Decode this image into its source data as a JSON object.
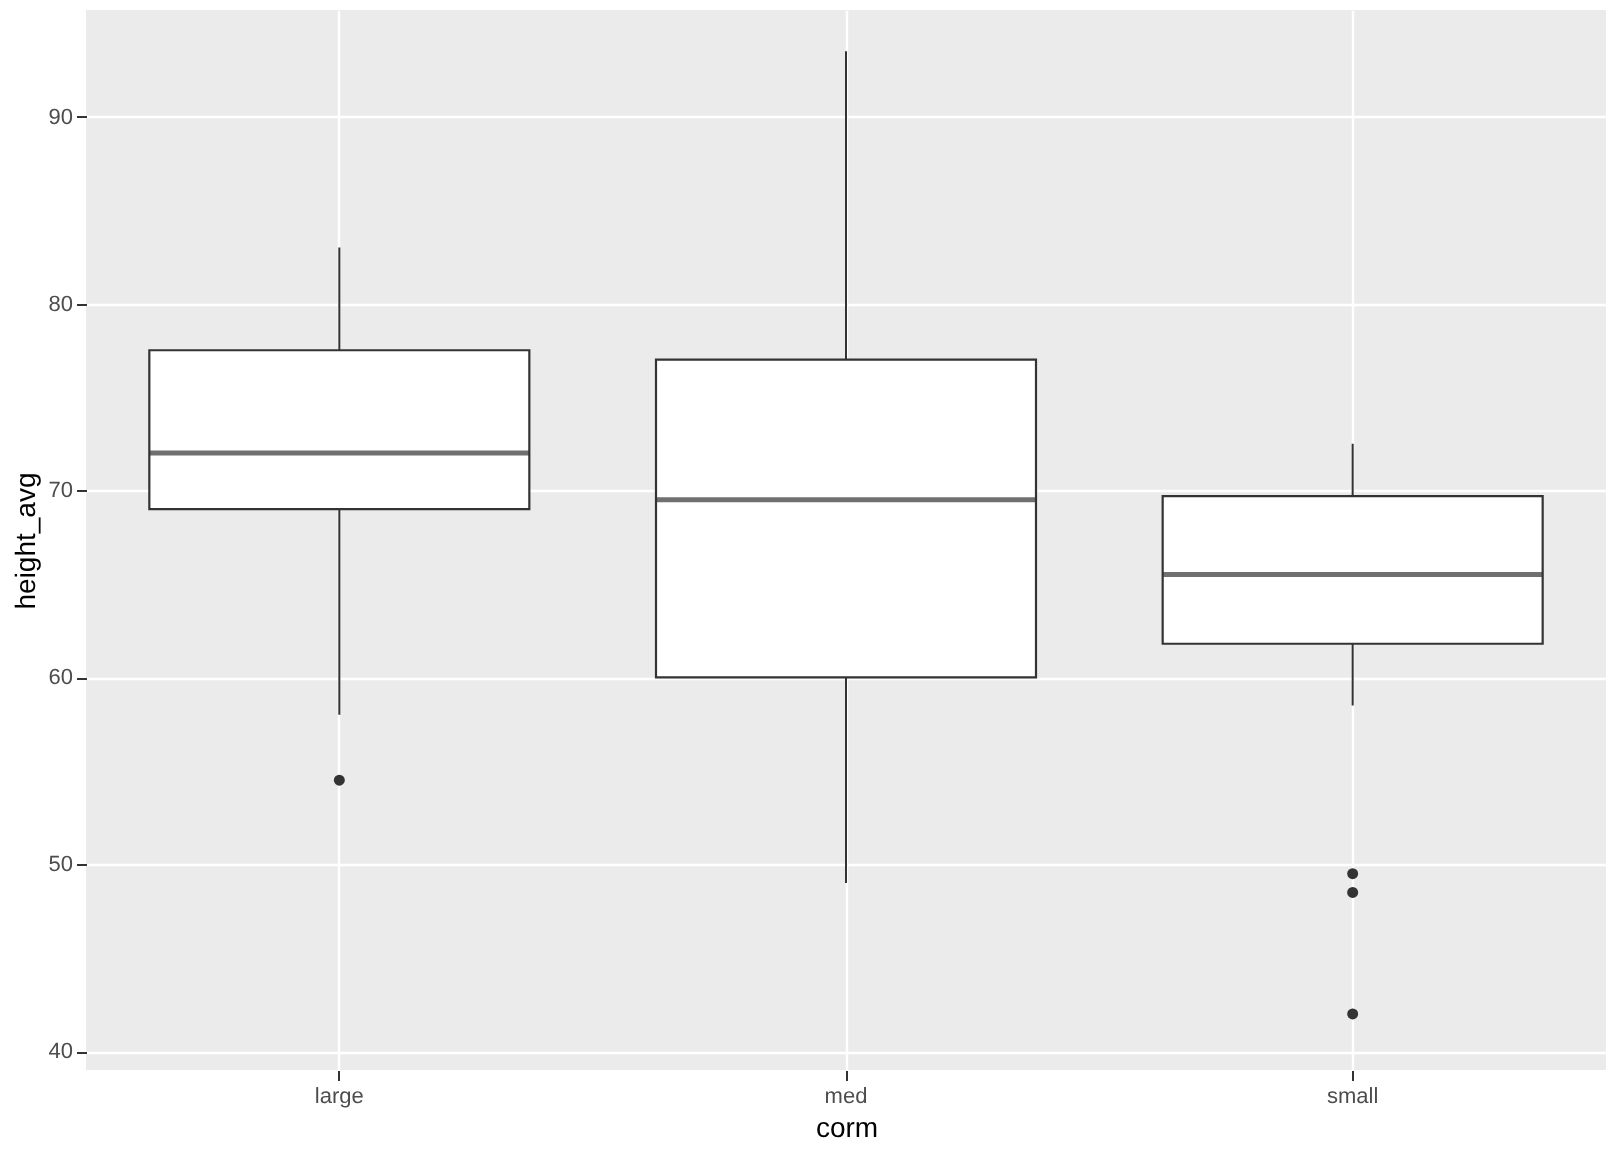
{
  "chart_data": {
    "type": "box",
    "xlabel": "corm",
    "ylabel": "height_avg",
    "categories": [
      "large",
      "med",
      "small"
    ],
    "boxes": [
      {
        "low": 58,
        "q1": 69,
        "median": 72,
        "q3": 77.5,
        "high": 83,
        "outliers": [
          54.5
        ]
      },
      {
        "low": 49,
        "q1": 60,
        "median": 69.5,
        "q3": 77,
        "high": 93.5
      },
      {
        "low": 58.5,
        "q1": 61.8,
        "median": 65.5,
        "q3": 69.7,
        "high": 72.5,
        "outliers": [
          49.5,
          48.5,
          42
        ]
      }
    ],
    "ylim": [
      39,
      95.7
    ],
    "yticks": [
      40,
      50,
      60,
      70,
      80,
      90
    ],
    "grid": true
  }
}
